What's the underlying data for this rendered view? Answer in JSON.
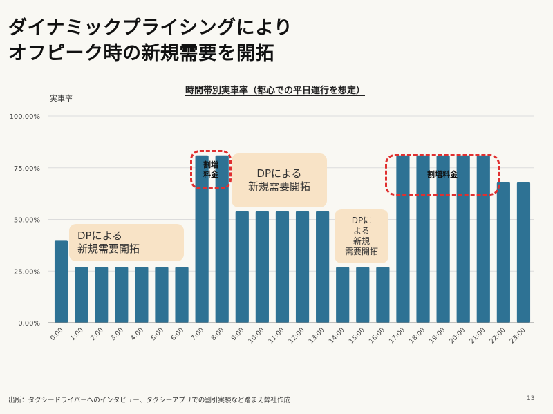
{
  "slide": {
    "title_line1": "ダイナミックプライシングにより",
    "title_line2": "オフピーク時の新規需要を開拓",
    "footer_source": "出所：タクシードライバーへのインタビュー、タクシーアプリでの割引実験など踏まえ弊社作成",
    "page_number": "13"
  },
  "colors": {
    "bar": "#2e7294",
    "note_fill": "#f8e3c6",
    "dash": "#e03030",
    "grid": "#dcdcdc"
  },
  "annotations": [
    {
      "text": "DPによる\n新規需要開拓",
      "type": "note"
    },
    {
      "text": "割増\n料金",
      "type": "dashed"
    },
    {
      "text": "DPによる\n新規需要開拓",
      "type": "note"
    },
    {
      "text": "DPに\nよる\n新規\n需要開拓",
      "type": "note"
    },
    {
      "text": "割増料金",
      "type": "dashed"
    }
  ],
  "chart_data": {
    "type": "bar",
    "title": "時間帯別実車率（都心での平日運行を想定）",
    "xlabel": "",
    "ylabel": "実車率",
    "ylim": [
      0,
      100
    ],
    "yticks": [
      "0.00%",
      "25.00%",
      "50.00%",
      "75.00%",
      "100.00%"
    ],
    "ytick_values": [
      0,
      25,
      50,
      75,
      100
    ],
    "grid": true,
    "categories": [
      "0:00",
      "1:00",
      "2:00",
      "3:00",
      "4:00",
      "5:00",
      "6:00",
      "7:00",
      "8:00",
      "9:00",
      "10:00",
      "11:00",
      "12:00",
      "13:00",
      "14:00",
      "15:00",
      "16:00",
      "17:00",
      "18:00",
      "19:00",
      "20:00",
      "21:00",
      "22:00",
      "23:00"
    ],
    "values": [
      40,
      27,
      27,
      27,
      27,
      27,
      27,
      81,
      81,
      54,
      54,
      54,
      54,
      54,
      27,
      27,
      27,
      81,
      81,
      81,
      81,
      81,
      68,
      68
    ]
  }
}
